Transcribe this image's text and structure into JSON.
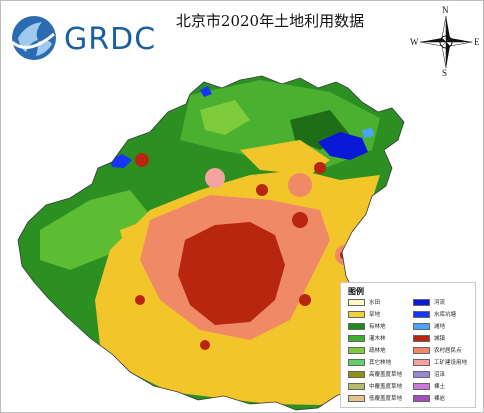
{
  "header": {
    "logo_text": "GRDC",
    "title": "北京市2020年土地利用数据"
  },
  "compass": {
    "north": "N",
    "south": "S",
    "east": "E",
    "west": "W"
  },
  "legend": {
    "title": "图例",
    "items": [
      {
        "label": "水田",
        "color": "#fdf7c3"
      },
      {
        "label": "旱地",
        "color": "#f4d03f"
      },
      {
        "label": "有林地",
        "color": "#1e8a1e"
      },
      {
        "label": "灌木林",
        "color": "#3fae2f"
      },
      {
        "label": "疏林地",
        "color": "#7ecb3c"
      },
      {
        "label": "其它林地",
        "color": "#5fd16b"
      },
      {
        "label": "高覆盖度草地",
        "color": "#8f8f13"
      },
      {
        "label": "中覆盖度草地",
        "color": "#b9ba72"
      },
      {
        "label": "低覆盖度草地",
        "color": "#e6c28a"
      },
      {
        "label": "河流",
        "color": "#0a18d8"
      },
      {
        "label": "水库坑塘",
        "color": "#1434ff"
      },
      {
        "label": "滩地",
        "color": "#4aa3ff"
      },
      {
        "label": "城镇",
        "color": "#b8260f"
      },
      {
        "label": "农村居民点",
        "color": "#f08a66"
      },
      {
        "label": "工矿建设用地",
        "color": "#f4a3a0"
      },
      {
        "label": "沼泽",
        "color": "#9a85d8"
      },
      {
        "label": "裸土",
        "color": "#c87ad8"
      },
      {
        "label": "裸岩",
        "color": "#a64cc0"
      }
    ]
  }
}
